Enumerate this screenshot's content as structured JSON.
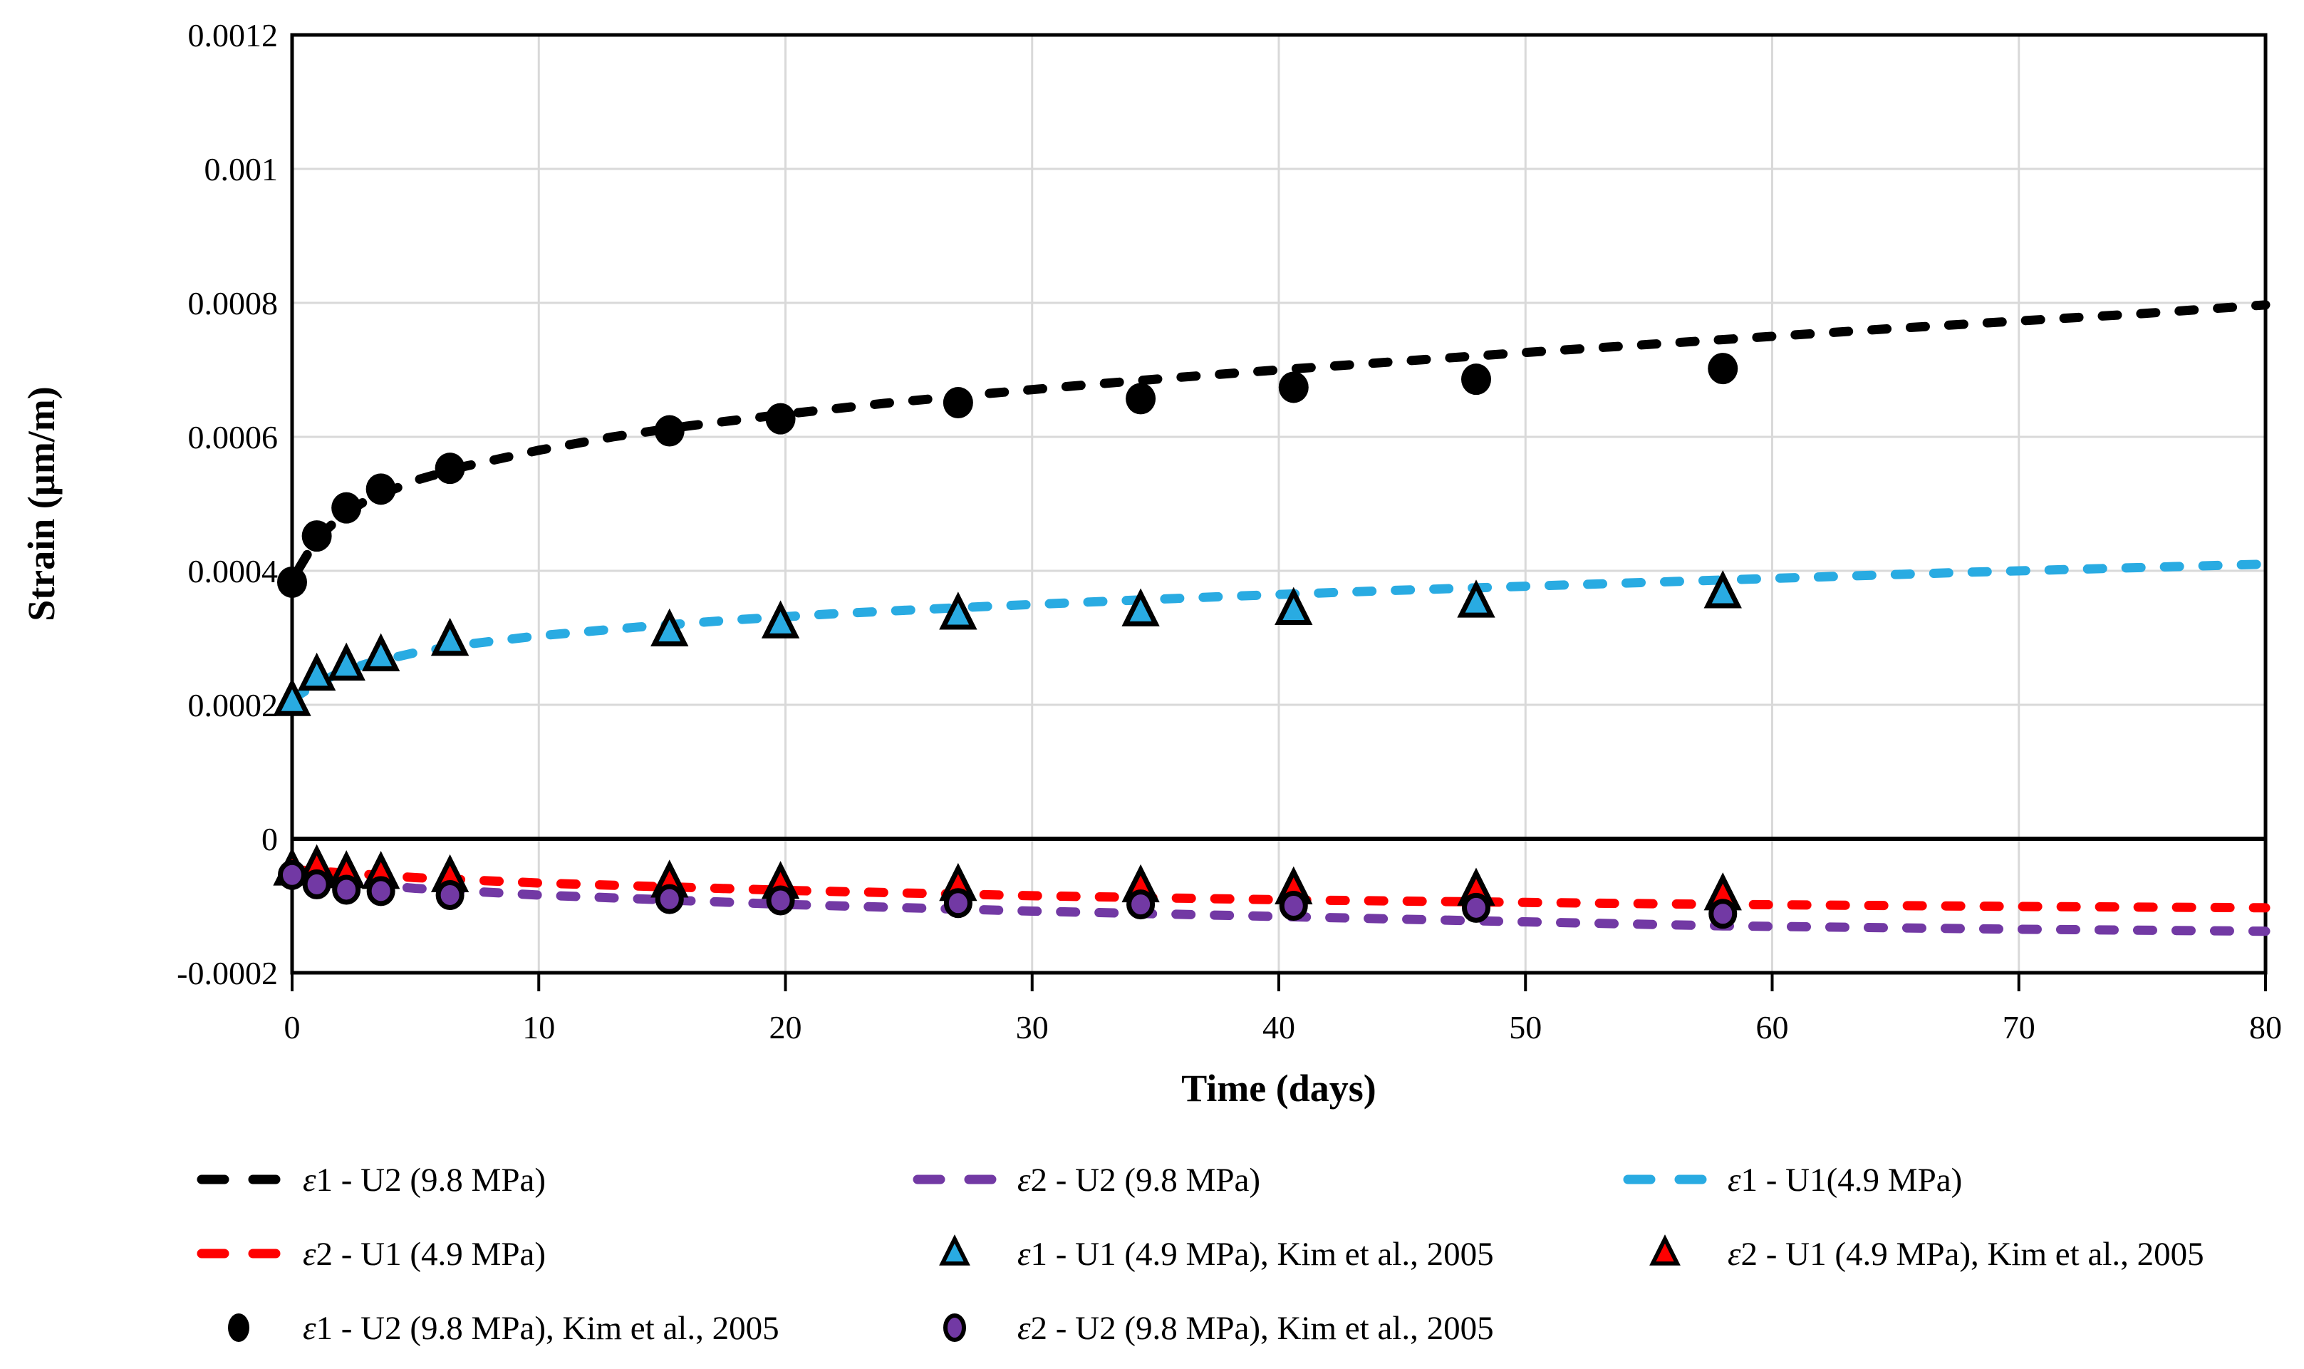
{
  "chart_data": {
    "type": "scatter",
    "title": "",
    "xlabel": "Time (days)",
    "ylabel": "Strain (µm/m)",
    "xlim": [
      0,
      80
    ],
    "ylim": [
      -0.0002,
      0.0012
    ],
    "x_ticks": [
      0,
      10,
      20,
      30,
      40,
      50,
      60,
      70,
      80
    ],
    "x_tick_labels": [
      "0",
      "10",
      "20",
      "30",
      "40",
      "50",
      "60",
      "70",
      "80"
    ],
    "y_ticks": [
      -0.0002,
      0,
      0.0002,
      0.0004,
      0.0006,
      0.0008,
      0.001,
      0.0012
    ],
    "y_tick_labels": [
      "-0.0002",
      "0",
      "0.0002",
      "0.0004",
      "0.0006",
      "0.0008",
      "0.001",
      "0.0012"
    ],
    "grid": true,
    "grid_color": "#d9d9d9",
    "axis_color": "#000000",
    "background_color": "#ffffff",
    "legend_position": "bottom",
    "series": [
      {
        "id": "line_e1_u2",
        "label": "ε1 - U2 (9.8 MPa)",
        "type": "dashed-line",
        "color": "#000000",
        "points": [
          [
            0.3,
            0.000405
          ],
          [
            1,
            0.000448
          ],
          [
            2,
            0.000482
          ],
          [
            3,
            0.000505
          ],
          [
            5,
            0.000535
          ],
          [
            7,
            0.000556
          ],
          [
            10,
            0.00058
          ],
          [
            13,
            0.0006
          ],
          [
            16,
            0.000616
          ],
          [
            20,
            0.000634
          ],
          [
            24,
            0.00065
          ],
          [
            28,
            0.000664
          ],
          [
            32,
            0.000677
          ],
          [
            36,
            0.000689
          ],
          [
            40,
            0.0007
          ],
          [
            45,
            0.000713
          ],
          [
            50,
            0.000726
          ],
          [
            55,
            0.000738
          ],
          [
            60,
            0.00075
          ],
          [
            65,
            0.000762
          ],
          [
            70,
            0.000773
          ],
          [
            75,
            0.000784
          ],
          [
            80,
            0.000797
          ]
        ]
      },
      {
        "id": "line_e2_u2",
        "label": "ε2 - U2 (9.8 MPa)",
        "type": "dashed-line",
        "color": "#7239a4",
        "points": [
          [
            0,
            -5.8e-05
          ],
          [
            5,
            -7.4e-05
          ],
          [
            10,
            -8.4e-05
          ],
          [
            20,
            -9.8e-05
          ],
          [
            30,
            -0.000108
          ],
          [
            40,
            -0.000116
          ],
          [
            50,
            -0.000124
          ],
          [
            58,
            -0.00013
          ],
          [
            70,
            -0.000135
          ],
          [
            80,
            -0.000138
          ]
        ]
      },
      {
        "id": "line_e1_u1",
        "label": "ε1 - U1(4.9 MPa)",
        "type": "dashed-line",
        "color": "#29abe2",
        "points": [
          [
            0,
            0.000208
          ],
          [
            1,
            0.000232
          ],
          [
            2,
            0.000249
          ],
          [
            3,
            0.000261
          ],
          [
            5,
            0.000278
          ],
          [
            7,
            0.00029
          ],
          [
            10,
            0.000303
          ],
          [
            14,
            0.000316
          ],
          [
            18,
            0.000327
          ],
          [
            22,
            0.000336
          ],
          [
            27,
            0.000345
          ],
          [
            32,
            0.000353
          ],
          [
            38,
            0.000362
          ],
          [
            44,
            0.00037
          ],
          [
            50,
            0.000377
          ],
          [
            56,
            0.000384
          ],
          [
            62,
            0.000391
          ],
          [
            68,
            0.000398
          ],
          [
            74,
            0.000404
          ],
          [
            80,
            0.00041
          ]
        ]
      },
      {
        "id": "line_e2_u1",
        "label": "ε2 - U1 (4.9 MPa)",
        "type": "dashed-line",
        "color": "#ff0000",
        "points": [
          [
            0,
            -4.6e-05
          ],
          [
            5,
            -5.8e-05
          ],
          [
            10,
            -6.6e-05
          ],
          [
            20,
            -7.7e-05
          ],
          [
            30,
            -8.5e-05
          ],
          [
            40,
            -9.1e-05
          ],
          [
            50,
            -9.5e-05
          ],
          [
            58,
            -9.8e-05
          ],
          [
            70,
            -0.000101
          ],
          [
            80,
            -0.000103
          ]
        ]
      },
      {
        "id": "pts_e1_u1_kim",
        "label": "ε1 - U1 (4.9 MPa), Kim et al., 2005",
        "type": "triangle",
        "color": "#29abe2",
        "x": [
          0,
          1,
          2.2,
          3.6,
          6.4,
          15.3,
          19.8,
          27,
          34.4,
          40.6,
          48,
          58
        ],
        "y": [
          0.000205,
          0.000243,
          0.000258,
          0.000272,
          0.000295,
          0.000309,
          0.000321,
          0.000334,
          0.000339,
          0.000341,
          0.000352,
          0.000366
        ]
      },
      {
        "id": "pts_e2_u1_kim",
        "label": "ε2 - U1 (4.9 MPa), Kim et al., 2005",
        "type": "triangle",
        "color": "#ff0000",
        "x": [
          0,
          1,
          2.2,
          3.6,
          6.4,
          15.3,
          19.8,
          27,
          34.4,
          40.6,
          48,
          58
        ],
        "y": [
          -4.8e-05,
          -4.3e-05,
          -5.2e-05,
          -5.3e-05,
          -5.8e-05,
          -6.6e-05,
          -6.8e-05,
          -7.1e-05,
          -7.3e-05,
          -7.6e-05,
          -7.8e-05,
          -8.5e-05
        ]
      },
      {
        "id": "pts_e1_u2_kim",
        "label": "ε1 - U2 (9.8 MPa), Kim et al., 2005",
        "type": "circle",
        "color": "#000000",
        "x": [
          0,
          1,
          2.2,
          3.6,
          6.4,
          15.3,
          19.8,
          27,
          34.4,
          40.6,
          48,
          58
        ],
        "y": [
          0.000383,
          0.000452,
          0.000494,
          0.000522,
          0.000553,
          0.000609,
          0.000627,
          0.000651,
          0.000657,
          0.000674,
          0.000686,
          0.000702
        ]
      },
      {
        "id": "pts_e2_u2_kim",
        "label": "ε2 - U2 (9.8 MPa), Kim et al., 2005",
        "type": "circle",
        "color": "#7239a4",
        "x": [
          0,
          1,
          2.2,
          3.6,
          6.4,
          15.3,
          19.8,
          27,
          34.4,
          40.6,
          48,
          58
        ],
        "y": [
          -5.4e-05,
          -6.8e-05,
          -7.6e-05,
          -7.8e-05,
          -8.4e-05,
          -9e-05,
          -9.2e-05,
          -9.6e-05,
          -9.8e-05,
          -0.0001,
          -0.000103,
          -0.000112
        ]
      }
    ],
    "legend_layout": [
      [
        "line_e1_u2",
        "line_e2_u2",
        "line_e1_u1"
      ],
      [
        "line_e2_u1",
        "pts_e1_u1_kim",
        "pts_e2_u1_kim"
      ],
      [
        "pts_e1_u2_kim",
        "pts_e2_u2_kim",
        null
      ]
    ]
  }
}
